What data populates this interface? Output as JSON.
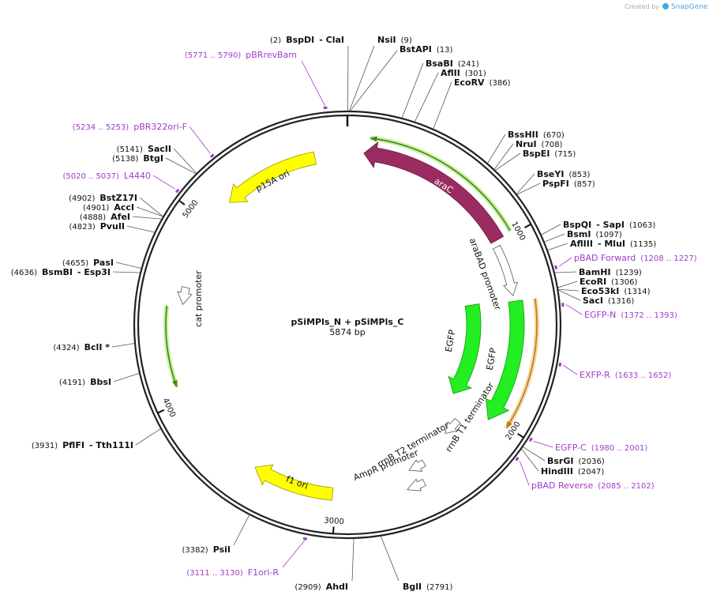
{
  "header": {
    "created_by": "Created by",
    "brand": "SnapGene"
  },
  "center": {
    "name": "pSiMPls_N + pSiMPls_C",
    "length": "5874 bp"
  },
  "ticks": [
    "1000",
    "2000",
    "3000",
    "4000",
    "5000"
  ],
  "enzymes": [
    {
      "position": "(2)",
      "name": "BspDI",
      "extra": "- ClaI"
    },
    {
      "name": "NsiI",
      "position": "(9)"
    },
    {
      "name": "BstAPI",
      "position": "(13)"
    },
    {
      "name": "BsaBI",
      "position": "(241)"
    },
    {
      "name": "AflII",
      "position": "(301)"
    },
    {
      "name": "EcoRV",
      "position": "(386)"
    },
    {
      "name": "BssHII",
      "position": "(670)"
    },
    {
      "name": "NruI",
      "position": "(708)"
    },
    {
      "name": "BspEI",
      "position": "(715)"
    },
    {
      "name": "BseYI",
      "position": "(853)"
    },
    {
      "name": "PspFI",
      "position": "(857)"
    },
    {
      "name": "BspQI",
      "extra": "- SapI",
      "position": "(1063)"
    },
    {
      "name": "BsmI",
      "position": "(1097)"
    },
    {
      "name": "AflIII",
      "extra": "- MluI",
      "position": "(1135)"
    },
    {
      "name": "BamHI",
      "position": "(1239)"
    },
    {
      "name": "EcoRI",
      "position": "(1306)"
    },
    {
      "name": "Eco53kI",
      "position": "(1314)"
    },
    {
      "name": "SacI",
      "position": "(1316)"
    },
    {
      "name": "BsrGI",
      "position": "(2036)"
    },
    {
      "name": "HindIII",
      "position": "(2047)"
    },
    {
      "name": "BglI",
      "position": "(2791)"
    },
    {
      "position": "(2909)",
      "name": "AhdI"
    },
    {
      "position": "(3382)",
      "name": "PsiI"
    },
    {
      "position": "(3931)",
      "name": "PflFI",
      "extra": "- Tth111I"
    },
    {
      "position": "(4191)",
      "name": "BbsI"
    },
    {
      "position": "(4324)",
      "name": "BclI *"
    },
    {
      "position": "(4636)",
      "name": "BsmBI",
      "extra": "- Esp3I"
    },
    {
      "position": "(4655)",
      "name": "PasI"
    },
    {
      "position": "(4823)",
      "name": "PvuII"
    },
    {
      "position": "(4888)",
      "name": "AfeI"
    },
    {
      "position": "(4901)",
      "name": "AccI"
    },
    {
      "position": "(4902)",
      "name": "BstZ17I"
    },
    {
      "position": "(5138)",
      "name": "BtgI"
    },
    {
      "position": "(5141)",
      "name": "SacII"
    }
  ],
  "primers": [
    {
      "range": "(5771 .. 5790)",
      "name": "pBRrevBam"
    },
    {
      "range": "(5234 .. 5253)",
      "name": "pBR322ori-F"
    },
    {
      "range": "(5020 .. 5037)",
      "name": "L4440"
    },
    {
      "name": "pBAD Forward",
      "range": "(1208 .. 1227)"
    },
    {
      "name": "EGFP-N",
      "range": "(1372 .. 1393)"
    },
    {
      "name": "EXFP-R",
      "range": "(1633 .. 1652)"
    },
    {
      "name": "EGFP-C",
      "range": "(1980 .. 2001)"
    },
    {
      "name": "pBAD Reverse",
      "range": "(2085 .. 2102)"
    },
    {
      "range": "(3111 .. 3130)",
      "name": "F1ori-R"
    }
  ],
  "features": [
    "araC",
    "araBAD promoter",
    "EGFP",
    "EGFP",
    "rrnB T1 terminator",
    "rrnB T2 terminator",
    "AmpR promoter",
    "f1 ori",
    "cat promoter",
    "p15A ori"
  ]
}
